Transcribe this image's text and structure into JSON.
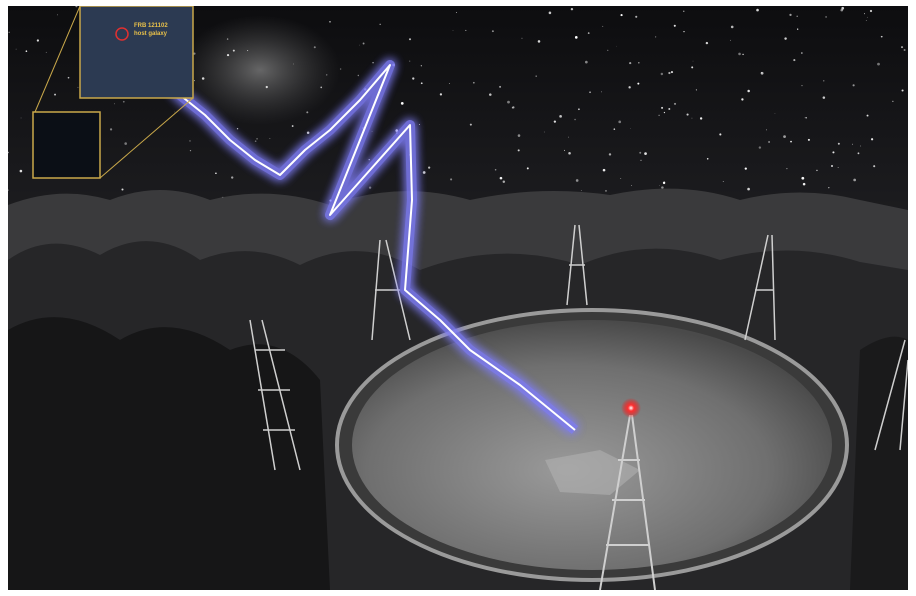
{
  "inset": {
    "labels": [
      "FRB 121102",
      "host galaxy"
    ]
  }
}
